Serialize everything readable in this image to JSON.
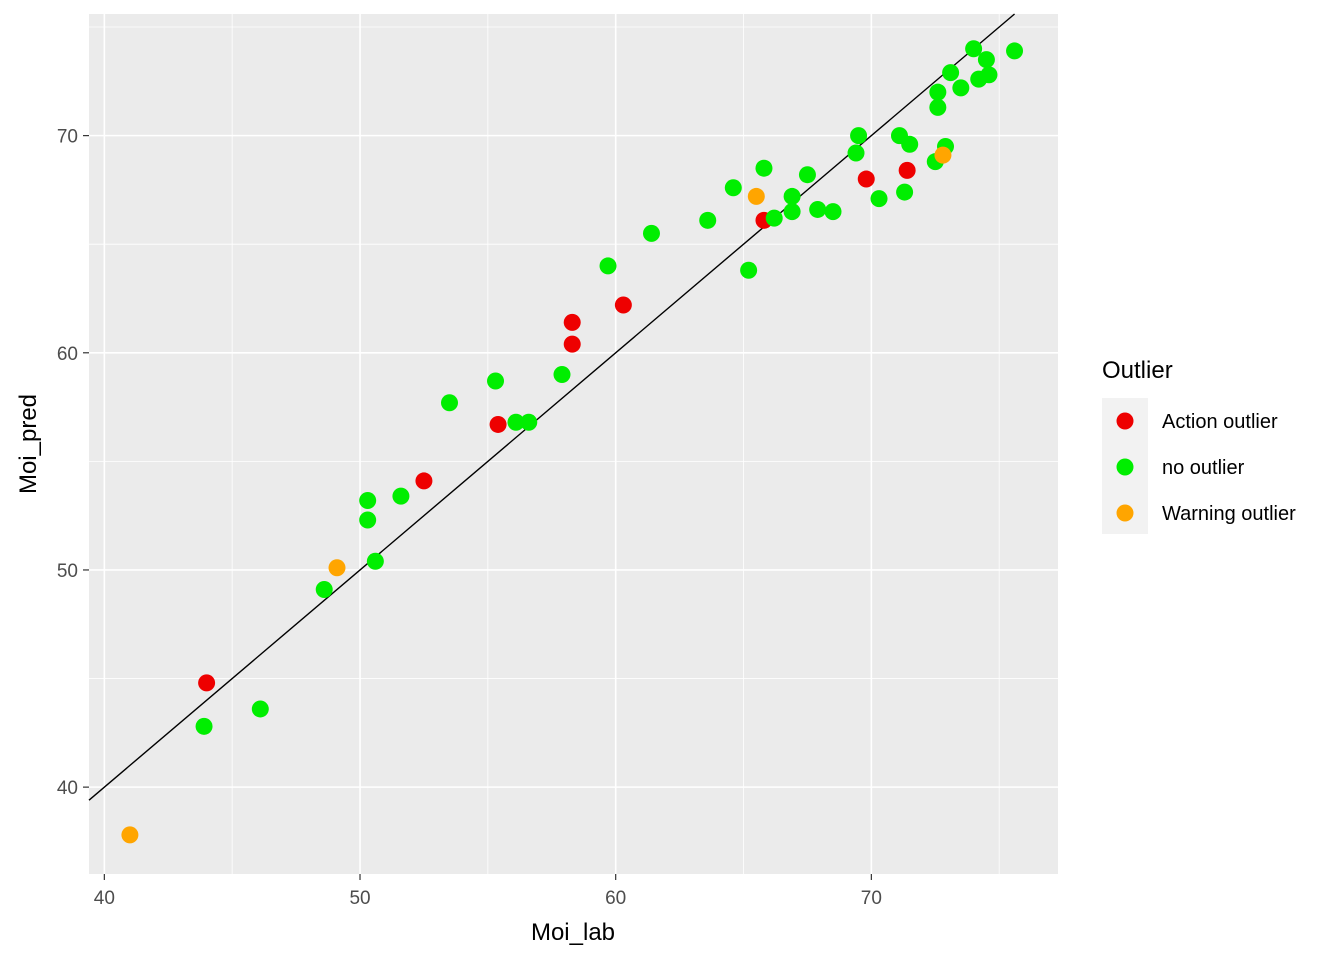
{
  "chart_data": {
    "type": "scatter",
    "xlabel": "Moi_lab",
    "ylabel": "Moi_pred",
    "xlim": [
      39.4,
      77.3
    ],
    "ylim": [
      36.0,
      75.6
    ],
    "x_ticks": [
      40,
      50,
      60,
      70
    ],
    "y_ticks": [
      40,
      50,
      60,
      70
    ],
    "x_minor": [
      45,
      55,
      65,
      75
    ],
    "y_minor": [
      45,
      55,
      65,
      75
    ],
    "grid": true,
    "reference_line": {
      "label": "y = x",
      "slope": 1,
      "intercept": 0
    },
    "legend": {
      "title": "Outlier",
      "placement": "right",
      "entries": [
        {
          "label": "Action outlier",
          "color": "#ee0000"
        },
        {
          "label": "no outlier",
          "color": "#00ee00"
        },
        {
          "label": "Warning outlier",
          "color": "#ffa500"
        }
      ]
    },
    "series": [
      {
        "name": "Action outlier",
        "color": "#ee0000",
        "points": [
          [
            44.0,
            44.8
          ],
          [
            52.5,
            54.1
          ],
          [
            55.4,
            56.7
          ],
          [
            58.3,
            60.4
          ],
          [
            58.3,
            61.4
          ],
          [
            60.3,
            62.2
          ],
          [
            65.8,
            66.1
          ],
          [
            69.8,
            68.0
          ],
          [
            71.4,
            68.4
          ]
        ]
      },
      {
        "name": "no outlier",
        "color": "#00ee00",
        "points": [
          [
            43.9,
            42.8
          ],
          [
            46.1,
            43.6
          ],
          [
            48.6,
            49.1
          ],
          [
            50.3,
            52.3
          ],
          [
            50.3,
            53.2
          ],
          [
            50.6,
            50.4
          ],
          [
            51.6,
            53.4
          ],
          [
            53.5,
            57.7
          ],
          [
            55.3,
            58.7
          ],
          [
            56.1,
            56.8
          ],
          [
            56.6,
            56.8
          ],
          [
            57.9,
            59.0
          ],
          [
            59.7,
            64.0
          ],
          [
            61.4,
            65.5
          ],
          [
            63.6,
            66.1
          ],
          [
            64.6,
            67.6
          ],
          [
            65.2,
            63.8
          ],
          [
            65.8,
            68.5
          ],
          [
            66.2,
            66.2
          ],
          [
            66.9,
            66.5
          ],
          [
            66.9,
            67.2
          ],
          [
            67.5,
            68.2
          ],
          [
            67.9,
            66.6
          ],
          [
            68.5,
            66.5
          ],
          [
            69.4,
            69.2
          ],
          [
            69.5,
            70.0
          ],
          [
            70.3,
            67.1
          ],
          [
            71.1,
            70.0
          ],
          [
            71.3,
            67.4
          ],
          [
            71.5,
            69.6
          ],
          [
            72.5,
            68.8
          ],
          [
            72.6,
            72.0
          ],
          [
            72.6,
            71.3
          ],
          [
            72.9,
            69.5
          ],
          [
            73.1,
            72.9
          ],
          [
            73.5,
            72.2
          ],
          [
            74.0,
            74.0
          ],
          [
            74.2,
            72.6
          ],
          [
            74.5,
            73.5
          ],
          [
            74.6,
            72.8
          ],
          [
            75.6,
            73.9
          ]
        ]
      },
      {
        "name": "Warning outlier",
        "color": "#ffa500",
        "points": [
          [
            41.0,
            37.8
          ],
          [
            49.1,
            50.1
          ],
          [
            65.5,
            67.2
          ],
          [
            72.8,
            69.1
          ]
        ]
      }
    ]
  }
}
